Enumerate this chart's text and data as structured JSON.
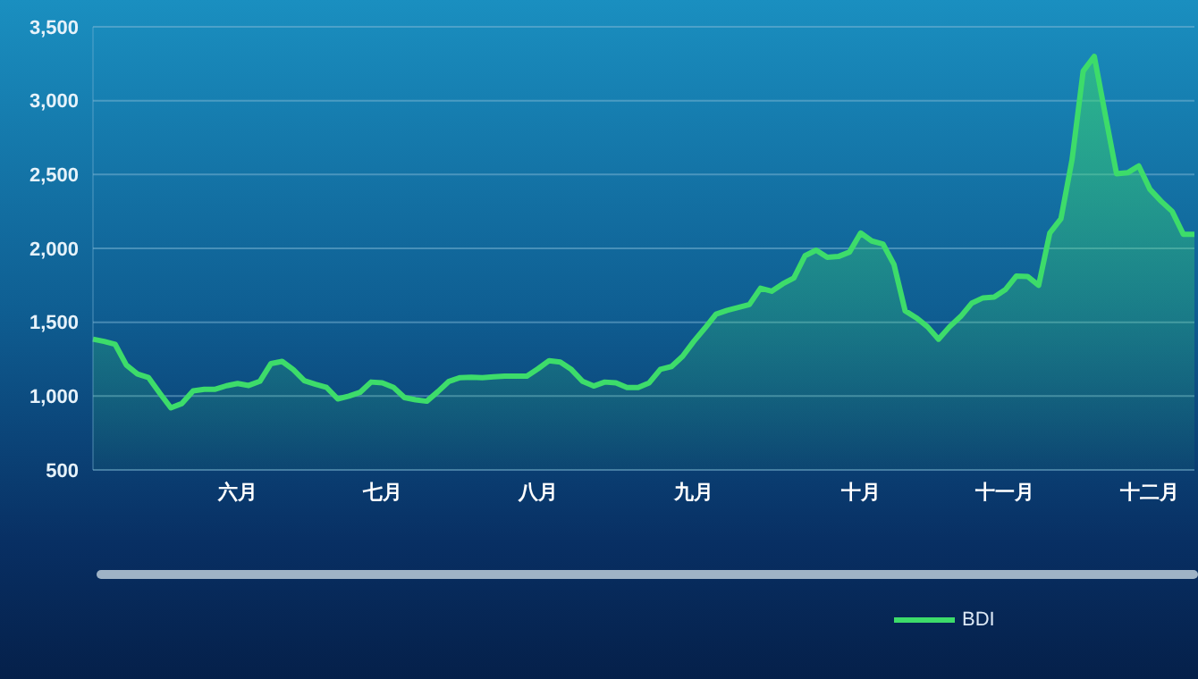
{
  "chart_data": {
    "type": "area",
    "categories": [
      null,
      null,
      null,
      null,
      null,
      null,
      null,
      null,
      null,
      null,
      null,
      null,
      null,
      "六月",
      null,
      null,
      null,
      null,
      null,
      null,
      null,
      null,
      null,
      null,
      null,
      null,
      "七月",
      null,
      null,
      null,
      null,
      null,
      null,
      null,
      null,
      null,
      null,
      null,
      null,
      null,
      "八月",
      null,
      null,
      null,
      null,
      null,
      null,
      null,
      null,
      null,
      null,
      null,
      null,
      null,
      "九月",
      null,
      null,
      null,
      null,
      null,
      null,
      null,
      null,
      null,
      null,
      null,
      null,
      null,
      null,
      "十月",
      null,
      null,
      null,
      null,
      null,
      null,
      null,
      null,
      null,
      null,
      null,
      null,
      "十一月",
      null,
      null,
      null,
      null,
      null,
      null,
      null,
      null,
      null,
      null,
      null,
      null,
      "十二月",
      null,
      null,
      null,
      null
    ],
    "series": [
      {
        "name": "BDI",
        "color": "#3ddc6a",
        "values": [
          1385,
          1370,
          1350,
          1210,
          1150,
          1125,
          1020,
          920,
          950,
          1035,
          1046,
          1046,
          1070,
          1085,
          1072,
          1100,
          1220,
          1235,
          1180,
          1104,
          1080,
          1058,
          981,
          1000,
          1025,
          1095,
          1090,
          1060,
          990,
          975,
          965,
          1030,
          1100,
          1125,
          1128,
          1125,
          1130,
          1135,
          1135,
          1135,
          1185,
          1240,
          1230,
          1180,
          1100,
          1068,
          1095,
          1090,
          1058,
          1058,
          1090,
          1181,
          1200,
          1270,
          1370,
          1460,
          1555,
          1580,
          1600,
          1620,
          1730,
          1710,
          1760,
          1800,
          1950,
          1988,
          1940,
          1945,
          1975,
          2104,
          2050,
          2030,
          1890,
          1577,
          1530,
          1470,
          1385,
          1470,
          1540,
          1630,
          1665,
          1670,
          1720,
          1813,
          1810,
          1750,
          2104,
          2200,
          2600,
          3200,
          3300,
          2900,
          2505,
          2512,
          2558,
          2400,
          2320,
          2250,
          2096,
          2096
        ]
      }
    ],
    "ylim": [
      500,
      3500
    ],
    "yticks": [
      {
        "value": 500,
        "label": "500"
      },
      {
        "value": 1000,
        "label": "1,000"
      },
      {
        "value": 1500,
        "label": "1,500"
      },
      {
        "value": 2000,
        "label": "2,000"
      },
      {
        "value": 2500,
        "label": "2,500"
      },
      {
        "value": 3000,
        "label": "3,000"
      },
      {
        "value": 3500,
        "label": "3,500"
      }
    ],
    "grid": "y",
    "legend": "bottom",
    "marker": "none",
    "line_style": "solid"
  }
}
